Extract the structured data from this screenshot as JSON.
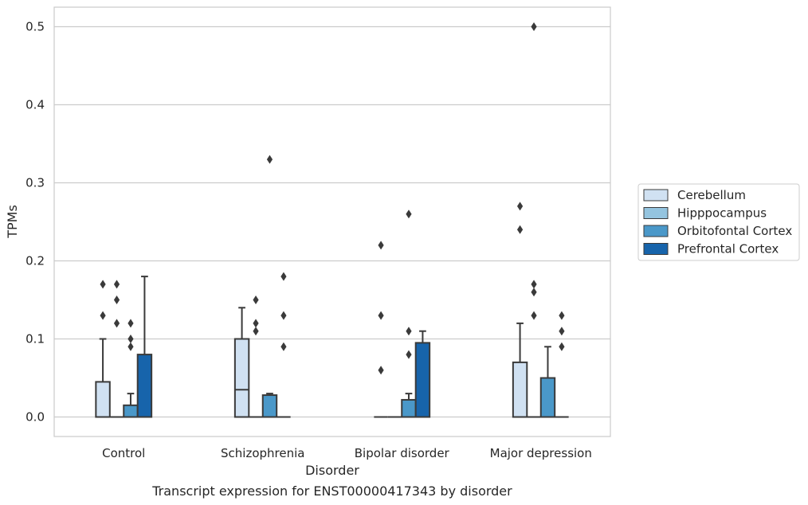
{
  "caption": "Transcript expression for ENST00000417343 by disorder",
  "chart_data": {
    "type": "box",
    "xlabel": "Disorder",
    "ylabel": "TPMs",
    "ylim": [
      -0.025,
      0.525
    ],
    "yticks": [
      0.0,
      0.1,
      0.2,
      0.3,
      0.4,
      0.5
    ],
    "ytick_labels": [
      "0.0",
      "0.1",
      "0.2",
      "0.3",
      "0.4",
      "0.5"
    ],
    "grid": "horizontal",
    "legend_position": "right",
    "categories": [
      "Control",
      "Schizophrenia",
      "Bipolar disorder",
      "Major depression"
    ],
    "series": [
      {
        "name": "Cerebellum",
        "color": "#d0e1f2",
        "boxes": [
          {
            "q1": 0.0,
            "median": 0.0,
            "q3": 0.045,
            "whisker_low": 0.0,
            "whisker_high": 0.1,
            "outliers": [
              0.13,
              0.17
            ]
          },
          {
            "q1": 0.0,
            "median": 0.035,
            "q3": 0.1,
            "whisker_low": 0.0,
            "whisker_high": 0.14,
            "outliers": []
          },
          {
            "q1": 0.0,
            "median": 0.0,
            "q3": 0.0,
            "whisker_low": 0.0,
            "whisker_high": 0.0,
            "outliers": [
              0.06,
              0.13,
              0.22
            ]
          },
          {
            "q1": 0.0,
            "median": 0.0,
            "q3": 0.07,
            "whisker_low": 0.0,
            "whisker_high": 0.12,
            "outliers": [
              0.24,
              0.27
            ]
          }
        ]
      },
      {
        "name": "Hipppocampus",
        "color": "#94c4df",
        "boxes": [
          {
            "q1": 0.0,
            "median": 0.0,
            "q3": 0.0,
            "whisker_low": 0.0,
            "whisker_high": 0.0,
            "outliers": [
              0.12,
              0.15,
              0.17
            ]
          },
          {
            "q1": 0.0,
            "median": 0.0,
            "q3": 0.0,
            "whisker_low": 0.0,
            "whisker_high": 0.0,
            "outliers": [
              0.11,
              0.12,
              0.15
            ]
          },
          {
            "q1": 0.0,
            "median": 0.0,
            "q3": 0.0,
            "whisker_low": 0.0,
            "whisker_high": 0.0,
            "outliers": []
          },
          {
            "q1": 0.0,
            "median": 0.0,
            "q3": 0.0,
            "whisker_low": 0.0,
            "whisker_high": 0.0,
            "outliers": [
              0.13,
              0.16,
              0.17,
              0.5
            ]
          }
        ]
      },
      {
        "name": "Orbitofontal Cortex",
        "color": "#4a98c9",
        "boxes": [
          {
            "q1": 0.0,
            "median": 0.0,
            "q3": 0.015,
            "whisker_low": 0.0,
            "whisker_high": 0.03,
            "outliers": [
              0.09,
              0.1,
              0.12
            ]
          },
          {
            "q1": 0.0,
            "median": 0.0,
            "q3": 0.028,
            "whisker_low": 0.0,
            "whisker_high": 0.03,
            "outliers": [
              0.33
            ]
          },
          {
            "q1": 0.0,
            "median": 0.0,
            "q3": 0.022,
            "whisker_low": 0.0,
            "whisker_high": 0.03,
            "outliers": [
              0.08,
              0.11,
              0.26
            ]
          },
          {
            "q1": 0.0,
            "median": 0.0,
            "q3": 0.05,
            "whisker_low": 0.0,
            "whisker_high": 0.09,
            "outliers": []
          }
        ]
      },
      {
        "name": "Prefrontal Cortex",
        "color": "#1764ab",
        "boxes": [
          {
            "q1": 0.0,
            "median": 0.0,
            "q3": 0.08,
            "whisker_low": 0.0,
            "whisker_high": 0.18,
            "outliers": []
          },
          {
            "q1": 0.0,
            "median": 0.0,
            "q3": 0.0,
            "whisker_low": 0.0,
            "whisker_high": 0.0,
            "outliers": [
              0.09,
              0.13,
              0.18
            ]
          },
          {
            "q1": 0.0,
            "median": 0.0,
            "q3": 0.095,
            "whisker_low": 0.0,
            "whisker_high": 0.11,
            "outliers": []
          },
          {
            "q1": 0.0,
            "median": 0.0,
            "q3": 0.0,
            "whisker_low": 0.0,
            "whisker_high": 0.0,
            "outliers": [
              0.09,
              0.11,
              0.13
            ]
          }
        ]
      }
    ]
  }
}
